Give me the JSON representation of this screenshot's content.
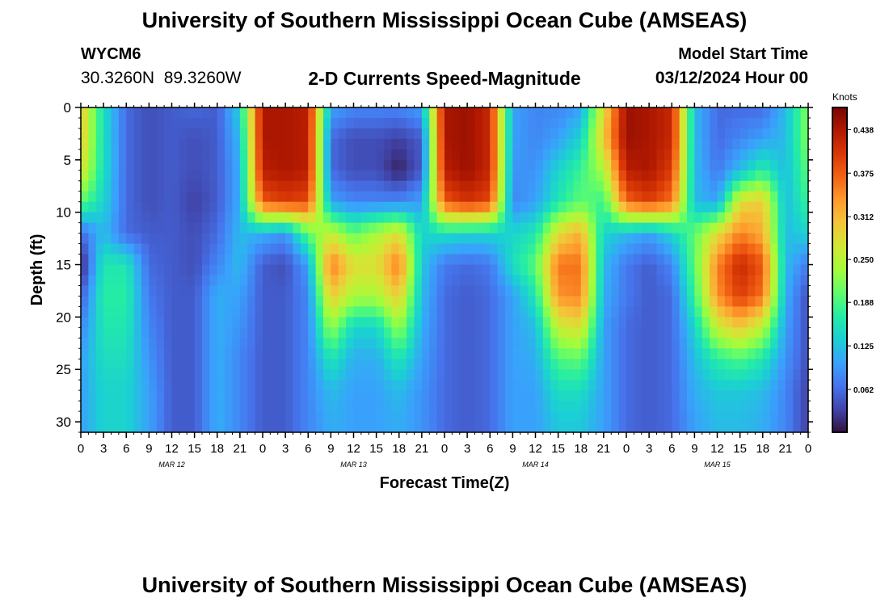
{
  "page": {
    "title": "University of Southern Mississippi Ocean Cube (AMSEAS)",
    "footer_title": "University of Southern Mississippi Ocean Cube (AMSEAS)",
    "station_id": "WYCM6",
    "coordinates": "30.3260N  89.3260W",
    "subtitle": "2-D Currents Speed-Magnitude",
    "model_start_label": "Model Start Time",
    "model_start_value": "03/12/2024 Hour 00"
  },
  "colors": {
    "scale": [
      "#30123b",
      "#4145ab",
      "#4675ed",
      "#39a2fc",
      "#1bcfd4",
      "#24eca6",
      "#61fc6c",
      "#a4fc3b",
      "#d1e834",
      "#f3c63a",
      "#fe9b2d",
      "#f36315",
      "#d93806",
      "#b11901",
      "#7a0402"
    ]
  },
  "chart_data": {
    "type": "heatmap",
    "title": "2-D Currents Speed-Magnitude",
    "xlabel": "Forecast Time(Z)",
    "ylabel": "Depth (ft)",
    "x_tick_labels": [
      "0",
      "3",
      "6",
      "9",
      "12",
      "15",
      "18",
      "21",
      "0",
      "3",
      "6",
      "9",
      "12",
      "15",
      "18",
      "21",
      "0",
      "3",
      "6",
      "9",
      "12",
      "15",
      "18",
      "21",
      "0",
      "3",
      "6",
      "9",
      "12",
      "15",
      "18",
      "21",
      "0"
    ],
    "day_labels": [
      "MAR 12",
      "MAR 13",
      "MAR 14",
      "MAR 15"
    ],
    "xlim": [
      0,
      96
    ],
    "ylim": [
      31,
      0
    ],
    "y_ticks": [
      0,
      5,
      10,
      15,
      20,
      25,
      30
    ],
    "colorbar": {
      "unit": "Knots",
      "range": [
        0,
        0.47
      ],
      "ticks": [
        0.062,
        0.125,
        0.188,
        0.25,
        0.312,
        0.375,
        0.438
      ],
      "tick_labels": [
        "0.062",
        "0.125",
        "0.188",
        "0.250",
        "0.312",
        "0.375",
        "0.438"
      ]
    },
    "depths_ft": [
      0,
      3,
      6,
      9,
      12,
      15,
      18,
      21,
      24,
      27,
      30
    ],
    "hours": [
      0,
      3,
      6,
      9,
      12,
      15,
      18,
      21,
      24,
      27,
      30,
      33,
      36,
      39,
      42,
      45,
      48,
      51,
      54,
      57,
      60,
      63,
      66,
      69,
      72,
      75,
      78,
      81,
      84,
      87,
      90,
      93,
      96
    ],
    "speed_knots": [
      [
        0.3,
        0.15,
        0.06,
        0.04,
        0.05,
        0.06,
        0.05,
        0.14,
        0.44,
        0.44,
        0.43,
        0.1,
        0.08,
        0.08,
        0.08,
        0.1,
        0.44,
        0.45,
        0.42,
        0.1,
        0.08,
        0.08,
        0.1,
        0.28,
        0.45,
        0.44,
        0.42,
        0.12,
        0.06,
        0.06,
        0.06,
        0.12,
        0.22
      ],
      [
        0.3,
        0.15,
        0.06,
        0.04,
        0.05,
        0.04,
        0.05,
        0.12,
        0.44,
        0.44,
        0.43,
        0.06,
        0.04,
        0.04,
        0.03,
        0.05,
        0.44,
        0.45,
        0.42,
        0.1,
        0.08,
        0.1,
        0.14,
        0.3,
        0.45,
        0.44,
        0.42,
        0.12,
        0.06,
        0.08,
        0.1,
        0.12,
        0.22
      ],
      [
        0.28,
        0.15,
        0.06,
        0.04,
        0.05,
        0.04,
        0.05,
        0.11,
        0.43,
        0.44,
        0.43,
        0.06,
        0.04,
        0.04,
        0.01,
        0.05,
        0.43,
        0.45,
        0.42,
        0.09,
        0.09,
        0.14,
        0.18,
        0.24,
        0.43,
        0.44,
        0.4,
        0.12,
        0.07,
        0.12,
        0.17,
        0.12,
        0.2
      ],
      [
        0.2,
        0.14,
        0.06,
        0.04,
        0.05,
        0.03,
        0.05,
        0.11,
        0.38,
        0.4,
        0.39,
        0.1,
        0.08,
        0.08,
        0.08,
        0.1,
        0.38,
        0.41,
        0.39,
        0.08,
        0.1,
        0.16,
        0.2,
        0.18,
        0.37,
        0.4,
        0.36,
        0.12,
        0.1,
        0.28,
        0.3,
        0.12,
        0.18
      ],
      [
        0.06,
        0.12,
        0.06,
        0.05,
        0.05,
        0.04,
        0.06,
        0.12,
        0.11,
        0.09,
        0.2,
        0.26,
        0.2,
        0.24,
        0.28,
        0.14,
        0.15,
        0.14,
        0.14,
        0.14,
        0.16,
        0.28,
        0.32,
        0.14,
        0.12,
        0.1,
        0.14,
        0.2,
        0.28,
        0.35,
        0.32,
        0.12,
        0.14
      ],
      [
        0.01,
        0.16,
        0.16,
        0.06,
        0.05,
        0.04,
        0.08,
        0.12,
        0.05,
        0.04,
        0.1,
        0.36,
        0.28,
        0.28,
        0.36,
        0.13,
        0.07,
        0.06,
        0.07,
        0.15,
        0.2,
        0.36,
        0.36,
        0.12,
        0.07,
        0.05,
        0.08,
        0.2,
        0.35,
        0.42,
        0.38,
        0.12,
        0.07
      ],
      [
        0.05,
        0.17,
        0.17,
        0.07,
        0.05,
        0.05,
        0.11,
        0.1,
        0.05,
        0.05,
        0.08,
        0.3,
        0.24,
        0.24,
        0.3,
        0.12,
        0.06,
        0.05,
        0.06,
        0.1,
        0.16,
        0.34,
        0.35,
        0.11,
        0.07,
        0.05,
        0.06,
        0.18,
        0.34,
        0.4,
        0.36,
        0.11,
        0.04
      ],
      [
        0.08,
        0.16,
        0.16,
        0.08,
        0.05,
        0.05,
        0.11,
        0.09,
        0.05,
        0.05,
        0.08,
        0.23,
        0.14,
        0.14,
        0.23,
        0.11,
        0.06,
        0.05,
        0.06,
        0.1,
        0.12,
        0.26,
        0.28,
        0.1,
        0.06,
        0.05,
        0.06,
        0.14,
        0.26,
        0.3,
        0.25,
        0.1,
        0.04
      ],
      [
        0.1,
        0.15,
        0.15,
        0.09,
        0.05,
        0.05,
        0.11,
        0.08,
        0.05,
        0.05,
        0.08,
        0.16,
        0.11,
        0.11,
        0.16,
        0.1,
        0.06,
        0.05,
        0.06,
        0.1,
        0.11,
        0.19,
        0.2,
        0.1,
        0.06,
        0.05,
        0.06,
        0.12,
        0.17,
        0.19,
        0.16,
        0.09,
        0.04
      ],
      [
        0.1,
        0.14,
        0.14,
        0.1,
        0.05,
        0.05,
        0.11,
        0.08,
        0.05,
        0.05,
        0.08,
        0.12,
        0.1,
        0.1,
        0.12,
        0.09,
        0.06,
        0.05,
        0.06,
        0.1,
        0.1,
        0.15,
        0.15,
        0.1,
        0.06,
        0.05,
        0.06,
        0.11,
        0.13,
        0.13,
        0.12,
        0.08,
        0.03
      ],
      [
        0.1,
        0.14,
        0.14,
        0.1,
        0.05,
        0.05,
        0.11,
        0.08,
        0.05,
        0.05,
        0.08,
        0.11,
        0.1,
        0.1,
        0.11,
        0.09,
        0.06,
        0.05,
        0.06,
        0.1,
        0.1,
        0.13,
        0.13,
        0.1,
        0.06,
        0.05,
        0.06,
        0.1,
        0.12,
        0.12,
        0.11,
        0.08,
        0.03
      ]
    ]
  }
}
